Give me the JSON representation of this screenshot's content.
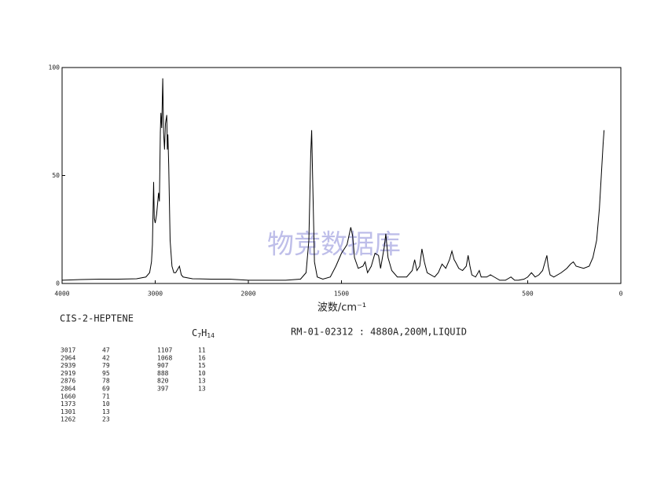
{
  "chart_data": {
    "type": "line",
    "xlabel": "波数/cm⁻¹",
    "watermark": "物竞数据库",
    "x": [
      4000,
      3800,
      3600,
      3400,
      3200,
      3100,
      3060,
      3040,
      3030,
      3017,
      3010,
      3000,
      2985,
      2964,
      2955,
      2945,
      2939,
      2930,
      2919,
      2910,
      2900,
      2890,
      2876,
      2870,
      2864,
      2855,
      2840,
      2820,
      2800,
      2780,
      2740,
      2720,
      2700,
      2600,
      2400,
      2200,
      2000,
      1800,
      1720,
      1690,
      1675,
      1665,
      1660,
      1655,
      1645,
      1630,
      1600,
      1560,
      1530,
      1500,
      1470,
      1450,
      1440,
      1430,
      1410,
      1385,
      1373,
      1360,
      1340,
      1320,
      1301,
      1290,
      1270,
      1262,
      1250,
      1230,
      1200,
      1150,
      1120,
      1107,
      1095,
      1080,
      1068,
      1055,
      1040,
      1000,
      980,
      960,
      940,
      920,
      907,
      895,
      888,
      870,
      850,
      830,
      820,
      810,
      800,
      780,
      760,
      750,
      720,
      700,
      680,
      650,
      620,
      590,
      570,
      550,
      520,
      500,
      480,
      460,
      440,
      420,
      397,
      390,
      380,
      360,
      320,
      290,
      270,
      255,
      240,
      200,
      170,
      150,
      130,
      115,
      105,
      95,
      90
    ],
    "series": [
      {
        "color": "#000000",
        "values": [
          1.5,
          1.8,
          2,
          2,
          2.2,
          3,
          5,
          10,
          18,
          47,
          30,
          28,
          32,
          42,
          38,
          70,
          79,
          72,
          95,
          70,
          62,
          74,
          78,
          62,
          69,
          55,
          20,
          8,
          5,
          5,
          8,
          4,
          3,
          2.2,
          2,
          2,
          1.5,
          1.5,
          2,
          5,
          20,
          60,
          71,
          50,
          10,
          3,
          2,
          3,
          8,
          14,
          18,
          26,
          22,
          12,
          7,
          8,
          10,
          5,
          8,
          14,
          13,
          7,
          17,
          23,
          12,
          6,
          3,
          3,
          6,
          11,
          6,
          8,
          16,
          10,
          5,
          3,
          5,
          9,
          7,
          11,
          15,
          11,
          10,
          7,
          6,
          8,
          13,
          8,
          4,
          3,
          6,
          3,
          3,
          4,
          3,
          1.5,
          1.5,
          3,
          1.5,
          1.5,
          2,
          3,
          5,
          3,
          4,
          6,
          13,
          8,
          4,
          3,
          5,
          7,
          9,
          10,
          8,
          7,
          8,
          12,
          20,
          35,
          50,
          65,
          71
        ]
      }
    ],
    "xlim": [
      4000,
      0
    ],
    "xbreak": 2000,
    "xticks": [
      4000,
      3000,
      2000,
      1500,
      500,
      0
    ],
    "ylim": [
      0,
      100
    ],
    "yticks": [
      0,
      50,
      100
    ]
  },
  "sample": "CIS-2-HEPTENE",
  "formula": [
    "C",
    "7",
    "H",
    "14"
  ],
  "conditions": "RM-01-02312 : 4880A,200M,LIQUID",
  "peaks": {
    "left": [
      [
        3017,
        47
      ],
      [
        2964,
        42
      ],
      [
        2939,
        79
      ],
      [
        2919,
        95
      ],
      [
        2876,
        78
      ],
      [
        2864,
        69
      ],
      [
        1660,
        71
      ],
      [
        1373,
        10
      ],
      [
        1301,
        13
      ],
      [
        1262,
        23
      ]
    ],
    "right": [
      [
        1107,
        11
      ],
      [
        1068,
        16
      ],
      [
        907,
        15
      ],
      [
        888,
        10
      ],
      [
        820,
        13
      ],
      [
        397,
        13
      ]
    ]
  }
}
